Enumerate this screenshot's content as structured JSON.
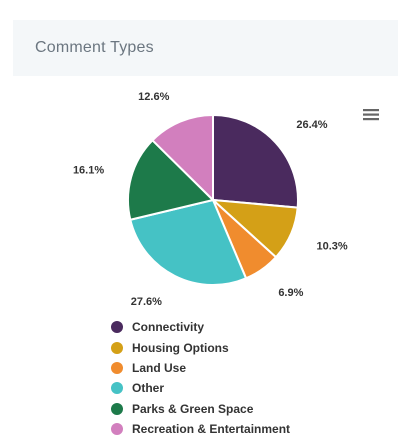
{
  "header": {
    "title": "Comment Types"
  },
  "menu": {
    "icon": "hamburger-menu-icon"
  },
  "chart_data": {
    "type": "pie",
    "title": "Comment Types",
    "legend_position": "bottom",
    "slices": [
      {
        "name": "Connectivity",
        "value": 26.4,
        "label": "26.4%",
        "color": "#4a2a5e"
      },
      {
        "name": "Housing Options",
        "value": 10.3,
        "label": "10.3%",
        "color": "#d4a017"
      },
      {
        "name": "Land Use",
        "value": 6.9,
        "label": "6.9%",
        "color": "#f08c2e"
      },
      {
        "name": "Other",
        "value": 27.6,
        "label": "27.6%",
        "color": "#45c2c5"
      },
      {
        "name": "Parks & Green Space",
        "value": 16.1,
        "label": "16.1%",
        "color": "#1d7a4a"
      },
      {
        "name": "Recreation & Entertainment",
        "value": 12.6,
        "label": "12.6%",
        "color": "#d27fbe"
      }
    ]
  }
}
